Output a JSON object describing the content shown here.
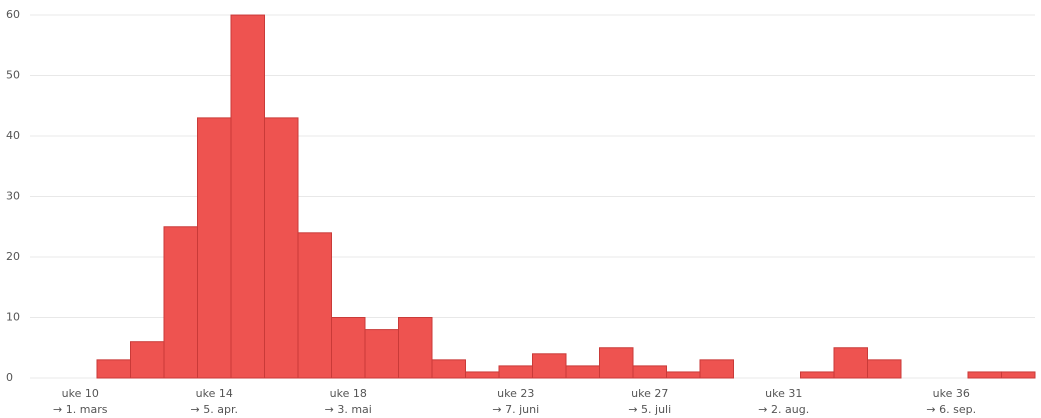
{
  "chart_data": {
    "type": "bar",
    "categories": [
      null,
      "uke 10",
      null,
      null,
      null,
      "uke 14",
      null,
      null,
      null,
      "uke 18",
      null,
      null,
      null,
      null,
      "uke 23",
      null,
      null,
      null,
      "uke 27",
      null,
      null,
      null,
      "uke 31",
      null,
      null,
      null,
      null,
      "uke 36",
      null,
      null
    ],
    "date_labels": [
      null,
      "→ 1. mars",
      null,
      null,
      null,
      "→ 5. apr.",
      null,
      null,
      null,
      "→ 3. mai",
      null,
      null,
      null,
      null,
      "→ 7. juni",
      null,
      null,
      null,
      "→ 5. juli",
      null,
      null,
      null,
      "→ 2. aug.",
      null,
      null,
      null,
      null,
      "→ 6. sep.",
      null,
      null
    ],
    "values": [
      0,
      0,
      3,
      6,
      25,
      43,
      60,
      43,
      24,
      10,
      8,
      10,
      3,
      1,
      2,
      4,
      2,
      5,
      2,
      1,
      3,
      0,
      0,
      1,
      5,
      3,
      0,
      0,
      1,
      1
    ],
    "color": "#ee5350",
    "ylim": [
      0,
      61
    ],
    "yticks": [
      0,
      10,
      20,
      30,
      40,
      50,
      60
    ],
    "grid": true
  }
}
